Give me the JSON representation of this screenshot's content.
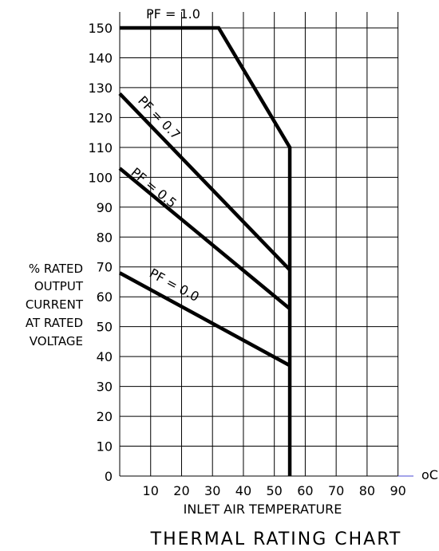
{
  "chart_data": {
    "type": "line",
    "title": "THERMAL RATING CHART",
    "xlabel": "INLET AIR TEMPERATURE",
    "x_unit": "oC",
    "ylabel": [
      "% RATED",
      "OUTPUT",
      "CURRENT",
      "AT RATED",
      "VOLTAGE"
    ],
    "xlim": [
      0,
      95
    ],
    "ylim": [
      0,
      150
    ],
    "x_ticks": [
      "10",
      "20",
      "30",
      "40",
      "50",
      "60",
      "70",
      "80",
      "90"
    ],
    "y_ticks": [
      "0",
      "10",
      "20",
      "30",
      "40",
      "50",
      "60",
      "70",
      "80",
      "90",
      "100",
      "110",
      "120",
      "130",
      "140",
      "150"
    ],
    "grid": true,
    "series": [
      {
        "name": "PF = 1.0",
        "x": [
          0,
          32,
          55,
          55
        ],
        "y": [
          150,
          150,
          110,
          0
        ]
      },
      {
        "name": "PF = 0.7",
        "x": [
          0,
          55
        ],
        "y": [
          128,
          69
        ]
      },
      {
        "name": "PF = 0.5",
        "x": [
          0,
          55
        ],
        "y": [
          103,
          56
        ]
      },
      {
        "name": "PF = 0.0",
        "x": [
          0,
          55
        ],
        "y": [
          68,
          37
        ]
      }
    ]
  }
}
